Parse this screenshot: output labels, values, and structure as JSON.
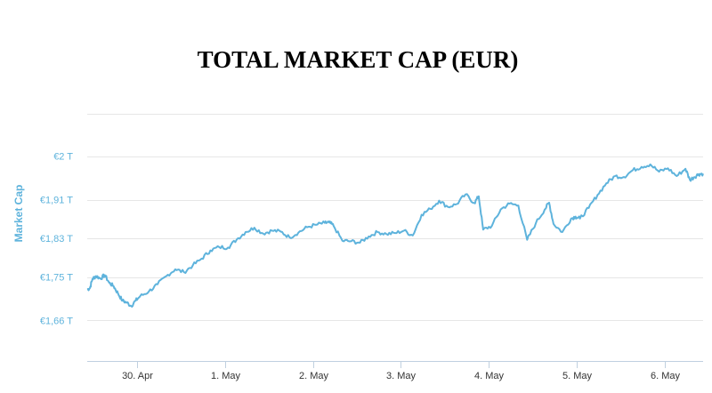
{
  "chart_data": {
    "type": "line",
    "title": "TOTAL MARKET CAP (EUR)",
    "ylabel": "Market Cap",
    "xlabel": "",
    "ylim": [
      1.5762,
      2.0878
    ],
    "grid": true,
    "legend": "none",
    "y_ticks": [
      {
        "value": 2.0,
        "label": "€2 T"
      },
      {
        "value": 1.91,
        "label": "€1,91 T"
      },
      {
        "value": 1.83,
        "label": "€1,83 T"
      },
      {
        "value": 1.75,
        "label": "€1,75 T"
      },
      {
        "value": 1.66,
        "label": "€1,66 T"
      }
    ],
    "x_ticks": [
      {
        "value": 0.565,
        "label": "30. Apr"
      },
      {
        "value": 1.565,
        "label": "1. May"
      },
      {
        "value": 2.565,
        "label": "2. May"
      },
      {
        "value": 3.565,
        "label": "3. May"
      },
      {
        "value": 4.565,
        "label": "4. May"
      },
      {
        "value": 5.565,
        "label": "5. May"
      },
      {
        "value": 6.565,
        "label": "6. May"
      }
    ],
    "xlim": [
      0,
      7.0
    ],
    "series": [
      {
        "color": "#5eb3dc",
        "x": [
          0.0,
          0.03,
          0.06,
          0.1,
          0.15,
          0.2,
          0.25,
          0.3,
          0.35,
          0.4,
          0.45,
          0.5,
          0.55,
          0.6,
          0.7,
          0.8,
          0.9,
          1.0,
          1.1,
          1.2,
          1.3,
          1.4,
          1.5,
          1.6,
          1.7,
          1.8,
          1.9,
          2.0,
          2.1,
          2.2,
          2.3,
          2.4,
          2.5,
          2.6,
          2.7,
          2.75,
          2.8,
          2.9,
          3.0,
          3.1,
          3.2,
          3.3,
          3.4,
          3.5,
          3.6,
          3.7,
          3.8,
          3.9,
          4.0,
          4.1,
          4.2,
          4.3,
          4.4,
          4.45,
          4.5,
          4.6,
          4.7,
          4.8,
          4.9,
          5.0,
          5.1,
          5.2,
          5.25,
          5.3,
          5.4,
          5.5,
          5.55,
          5.6,
          5.7,
          5.8,
          5.9,
          6.0,
          6.1,
          6.2,
          6.3,
          6.4,
          6.5,
          6.6,
          6.7,
          6.8,
          6.85,
          6.9,
          6.95,
          7.0
        ],
        "values": [
          1.724,
          1.727,
          1.746,
          1.752,
          1.747,
          1.754,
          1.738,
          1.731,
          1.716,
          1.701,
          1.697,
          1.69,
          1.701,
          1.71,
          1.72,
          1.735,
          1.752,
          1.766,
          1.76,
          1.774,
          1.788,
          1.805,
          1.812,
          1.811,
          1.828,
          1.843,
          1.852,
          1.84,
          1.846,
          1.844,
          1.832,
          1.842,
          1.853,
          1.858,
          1.862,
          1.863,
          1.856,
          1.825,
          1.824,
          1.821,
          1.834,
          1.843,
          1.839,
          1.841,
          1.846,
          1.836,
          1.879,
          1.891,
          1.908,
          1.895,
          1.901,
          1.921,
          1.903,
          1.917,
          1.848,
          1.856,
          1.89,
          1.902,
          1.898,
          1.827,
          1.862,
          1.89,
          1.904,
          1.86,
          1.843,
          1.871,
          1.875,
          1.871,
          1.893,
          1.92,
          1.944,
          1.959,
          1.957,
          1.971,
          1.978,
          1.983,
          1.968,
          1.975,
          1.959,
          1.974,
          1.951,
          1.957,
          1.963,
          1.964
        ]
      }
    ]
  }
}
